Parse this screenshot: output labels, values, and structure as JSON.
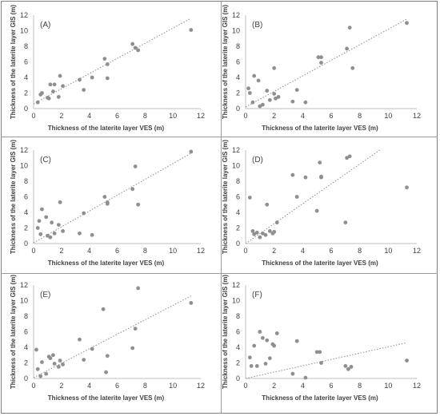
{
  "chart_data": [
    {
      "type": "scatter",
      "panel_label": "(A)",
      "xlabel": "Thickness of the laterite layer VES (m)",
      "ylabel": "Thickness of the laterite layer GIS (m)",
      "xlim": [
        0,
        12
      ],
      "ylim": [
        0,
        12
      ],
      "xticks": [
        "0",
        "2",
        "4",
        "6",
        "8",
        "10",
        "12"
      ],
      "yticks": [
        "0",
        "2",
        "4",
        "6",
        "8",
        "10",
        "12"
      ],
      "grid": false,
      "trendline": {
        "style": "dotted",
        "x": [
          0,
          11.3
        ],
        "y": [
          0.6,
          11.6
        ]
      },
      "x": [
        0.3,
        0.5,
        0.6,
        1.0,
        1.1,
        1.2,
        1.4,
        1.5,
        1.8,
        1.9,
        2.1,
        3.3,
        3.6,
        4.2,
        5.1,
        5.3,
        5.3,
        7.1,
        7.3,
        7.5,
        11.3
      ],
      "y": [
        0.8,
        1.8,
        2.0,
        1.4,
        1.3,
        3.1,
        2.2,
        3.1,
        1.5,
        4.2,
        2.9,
        3.7,
        2.4,
        4.0,
        6.4,
        5.7,
        3.9,
        8.3,
        7.8,
        7.5,
        10.1
      ]
    },
    {
      "type": "scatter",
      "panel_label": "(B)",
      "xlabel": "Thickness of the laterite layer VES (m)",
      "ylabel": "Thickness of the laterite layer GIS (m)",
      "xlim": [
        0,
        12
      ],
      "ylim": [
        0,
        12
      ],
      "xticks": [
        "0",
        "2",
        "4",
        "6",
        "8",
        "10",
        "12"
      ],
      "yticks": [
        "0",
        "2",
        "4",
        "6",
        "8",
        "10",
        "12"
      ],
      "grid": false,
      "trendline": {
        "style": "dotted",
        "x": [
          0,
          11.3
        ],
        "y": [
          0.2,
          11.5
        ]
      },
      "x": [
        0.2,
        0.3,
        0.5,
        0.6,
        0.9,
        1.0,
        1.2,
        1.5,
        1.7,
        2.0,
        2.0,
        2.1,
        2.3,
        3.3,
        3.6,
        4.2,
        5.1,
        5.3,
        5.3,
        7.1,
        7.3,
        7.5,
        11.3
      ],
      "y": [
        2.6,
        2.0,
        0.8,
        4.2,
        3.6,
        0.3,
        0.5,
        2.3,
        1.1,
        1.9,
        5.2,
        1.3,
        1.5,
        0.9,
        2.4,
        0.8,
        6.6,
        6.6,
        5.9,
        7.7,
        10.4,
        5.2,
        11.0
      ]
    },
    {
      "type": "scatter",
      "panel_label": "(C)",
      "xlabel": "Thickness of the laterite layer VES (m)",
      "ylabel": "Thickness of the laterite layer GIS (m)",
      "xlim": [
        0,
        12
      ],
      "ylim": [
        0,
        12
      ],
      "xticks": [
        "0",
        "2",
        "4",
        "6",
        "8",
        "10",
        "12"
      ],
      "yticks": [
        "0",
        "2",
        "4",
        "6",
        "8",
        "10",
        "12"
      ],
      "grid": false,
      "trendline": {
        "style": "dotted",
        "x": [
          0,
          11.3
        ],
        "y": [
          0.1,
          11.6
        ]
      },
      "x": [
        0.3,
        0.4,
        0.5,
        0.6,
        0.9,
        1.0,
        1.2,
        1.3,
        1.5,
        1.8,
        1.9,
        2.1,
        3.3,
        3.6,
        4.2,
        5.1,
        5.3,
        5.3,
        7.1,
        7.3,
        7.5,
        11.3
      ],
      "y": [
        2.0,
        2.9,
        1.2,
        4.4,
        3.4,
        1.0,
        0.8,
        2.7,
        1.3,
        2.4,
        5.3,
        1.6,
        1.3,
        3.9,
        1.1,
        6.0,
        5.3,
        5.1,
        7.0,
        9.9,
        5.0,
        11.8
      ]
    },
    {
      "type": "scatter",
      "panel_label": "(D)",
      "xlabel": "Thickness of the laterite layer VES (m)",
      "ylabel": "Thickness of the laterite layer GIS (m)",
      "xlim": [
        0,
        12
      ],
      "ylim": [
        0,
        12
      ],
      "xticks": [
        "0",
        "2",
        "4",
        "6",
        "8",
        "10",
        "12"
      ],
      "yticks": [
        "0",
        "2",
        "4",
        "6",
        "8",
        "10",
        "12"
      ],
      "grid": false,
      "trendline": {
        "style": "dotted",
        "x": [
          0,
          9.4
        ],
        "y": [
          0,
          12
        ]
      },
      "x": [
        0.3,
        0.5,
        0.6,
        0.8,
        1.0,
        1.2,
        1.4,
        1.5,
        1.7,
        1.9,
        2.0,
        2.2,
        3.3,
        3.6,
        4.2,
        5.0,
        5.2,
        5.3,
        5.3,
        7.0,
        7.1,
        7.3,
        11.3
      ],
      "y": [
        5.9,
        1.6,
        1.2,
        1.4,
        0.8,
        1.3,
        1.1,
        5.0,
        1.6,
        1.3,
        1.5,
        2.7,
        8.8,
        6.0,
        8.5,
        4.2,
        10.4,
        8.5,
        8.6,
        2.7,
        11.0,
        11.2,
        7.2
      ]
    },
    {
      "type": "scatter",
      "panel_label": "(E)",
      "xlabel": "Thickness of the laterite layer VES (m)",
      "ylabel": "Thickness of the laterite layer GIS (m)",
      "xlim": [
        0,
        12
      ],
      "ylim": [
        0,
        12
      ],
      "xticks": [
        "0",
        "2",
        "4",
        "6",
        "8",
        "10",
        "12"
      ],
      "yticks": [
        "0",
        "2",
        "4",
        "6",
        "8",
        "10",
        "12"
      ],
      "grid": false,
      "trendline": {
        "style": "dotted",
        "x": [
          0,
          11.3
        ],
        "y": [
          0.1,
          10.6
        ]
      },
      "x": [
        0.2,
        0.3,
        0.5,
        0.6,
        0.9,
        1.1,
        1.2,
        1.4,
        1.5,
        1.8,
        1.9,
        2.1,
        3.3,
        3.6,
        4.2,
        5.0,
        5.2,
        5.3,
        7.1,
        7.3,
        7.5,
        11.3
      ],
      "y": [
        3.7,
        1.2,
        0.3,
        2.1,
        0.6,
        2.8,
        2.6,
        3.0,
        1.9,
        1.5,
        2.3,
        1.8,
        5.0,
        2.4,
        3.8,
        8.9,
        0.8,
        2.9,
        3.9,
        6.4,
        11.6,
        9.7
      ]
    },
    {
      "type": "scatter",
      "panel_label": "(F)",
      "xlabel": "Thickness of the laterite layer VES (m)",
      "ylabel": "Thickness of the laterite layer GIS (m)",
      "xlim": [
        0,
        12
      ],
      "ylim": [
        0,
        12
      ],
      "xticks": [
        "0",
        "2",
        "4",
        "6",
        "8",
        "10",
        "12"
      ],
      "yticks": [
        "0",
        "2",
        "4",
        "6",
        "8",
        "10",
        "12"
      ],
      "grid": false,
      "trendline": {
        "style": "dotted",
        "x": [
          0,
          11.3
        ],
        "y": [
          0,
          4.6
        ]
      },
      "x": [
        0.3,
        0.4,
        0.6,
        0.8,
        1.0,
        1.2,
        1.4,
        1.5,
        1.7,
        1.9,
        2.0,
        2.2,
        3.3,
        3.6,
        4.2,
        5.0,
        5.2,
        5.3,
        7.0,
        7.2,
        7.4,
        11.3
      ],
      "y": [
        2.7,
        1.6,
        4.2,
        1.6,
        6.0,
        5.2,
        1.9,
        4.9,
        2.6,
        4.4,
        4.2,
        5.8,
        0.6,
        4.8,
        0.1,
        3.4,
        3.4,
        2.0,
        1.6,
        1.2,
        1.5,
        2.3
      ]
    }
  ]
}
